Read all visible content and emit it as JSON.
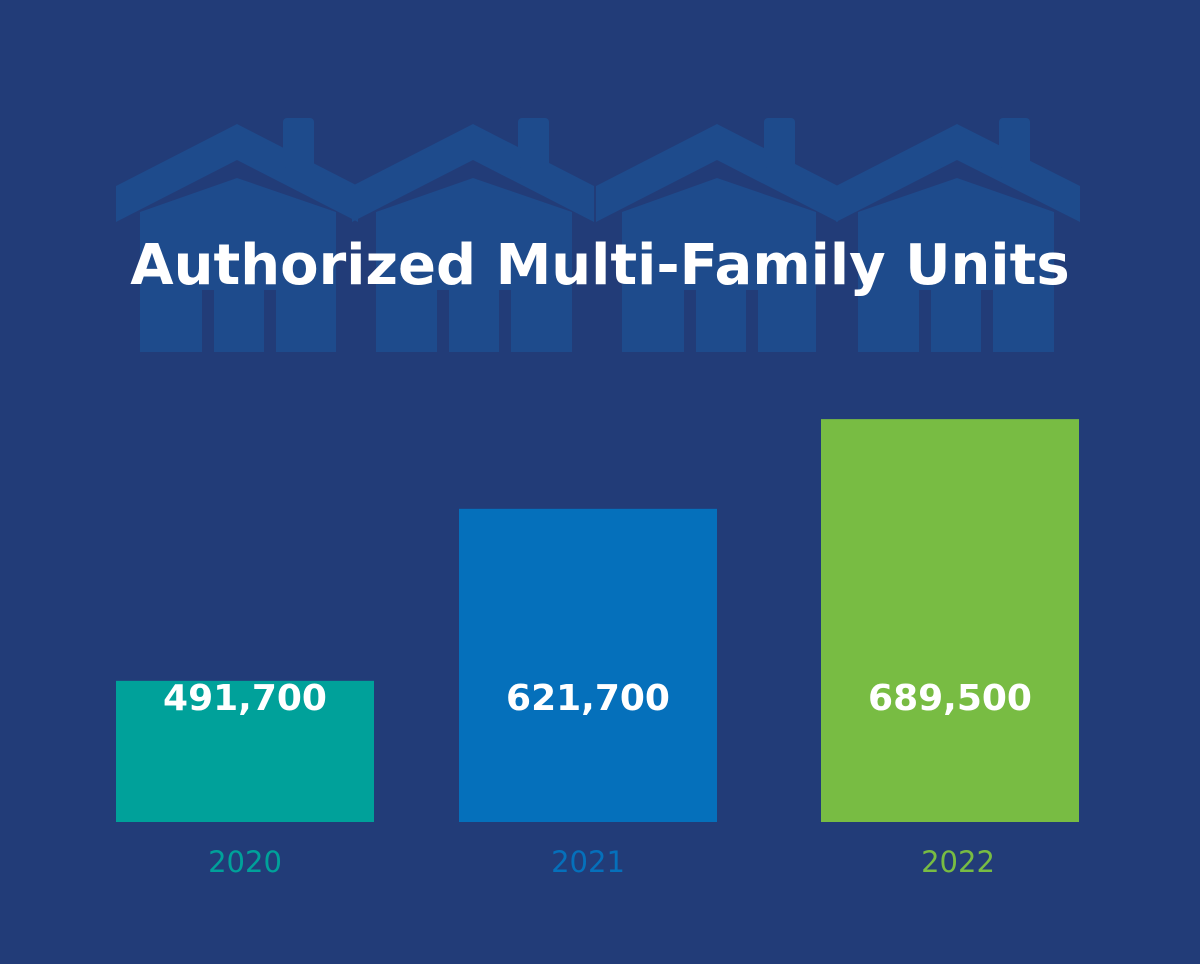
{
  "chart_data": {
    "type": "bar",
    "title": "Authorized Multi-Family Units",
    "categories": [
      "2020",
      "2021",
      "2022"
    ],
    "values": [
      491700,
      621700,
      689500
    ],
    "value_labels": [
      "491,700",
      "621,700",
      "689,500"
    ],
    "colors": [
      "#00a19a",
      "#0570bb",
      "#78bc43"
    ],
    "category_label_colors": [
      "#00a19a",
      "#0570bb",
      "#78bc43"
    ],
    "xlabel": "",
    "ylabel": "",
    "grid": false,
    "legend": "none"
  },
  "background": {
    "color": "#223c78",
    "decoration_color": "#1e4b8c",
    "decoration_icon": "house-row-icon"
  }
}
